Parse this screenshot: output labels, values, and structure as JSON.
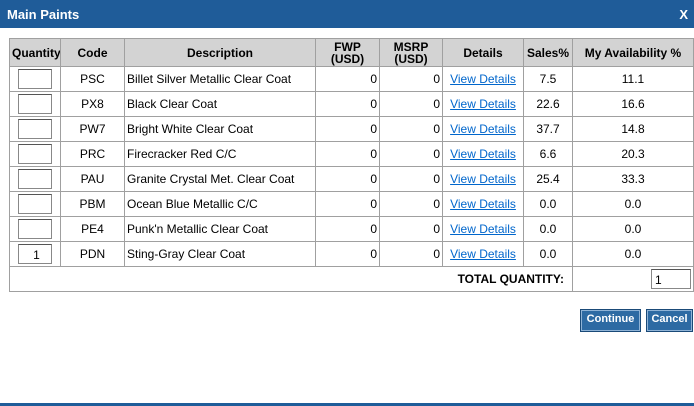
{
  "dialog": {
    "title": "Main Paints",
    "close": "X",
    "table": {
      "headers": [
        "Quantity",
        "Code",
        "Description",
        "FWP\n(USD)",
        "MSRP\n(USD)",
        "Details",
        "Sales%",
        "My Availability %"
      ],
      "rows": [
        {
          "code": "PSC",
          "description": "Billet Silver Metallic Clear Coat",
          "fwp": "0",
          "msrp": "0",
          "details": "View Details",
          "sales": "7.5",
          "availability": "11.1"
        },
        {
          "code": "PX8",
          "description": "Black Clear Coat",
          "fwp": "0",
          "msrp": "0",
          "details": "View Details",
          "sales": "22.6",
          "availability": "16.6"
        },
        {
          "code": "PW7",
          "description": "Bright White Clear Coat",
          "fwp": "0",
          "msrp": "0",
          "details": "View Details",
          "sales": "37.7",
          "availability": "14.8"
        },
        {
          "code": "PRC",
          "description": "Firecracker Red C/C",
          "fwp": "0",
          "msrp": "0",
          "details": "View Details",
          "sales": "6.6",
          "availability": "20.3"
        },
        {
          "code": "PAU",
          "description": "Granite Crystal Met. Clear Coat",
          "fwp": "0",
          "msrp": "0",
          "details": "View Details",
          "sales": "25.4",
          "availability": "33.3"
        },
        {
          "code": "PBM",
          "description": "Ocean Blue Metallic C/C",
          "fwp": "0",
          "msrp": "0",
          "details": "View Details",
          "sales": "0.0",
          "availability": "0.0"
        },
        {
          "code": "PE4",
          "description": "Punk'n Metallic Clear Coat",
          "fwp": "0",
          "msrp": "0",
          "details": "View Details",
          "sales": "0.0",
          "availability": "0.0"
        },
        {
          "quantity": "1",
          "code": "PDN",
          "description": "Sting-Gray Clear Coat",
          "fwp": "0",
          "msrp": "0",
          "details": "View Details",
          "sales": "0.0",
          "availability": "0.0"
        }
      ],
      "total_label": "TOTAL QUANTITY:",
      "total_value": "1"
    },
    "buttons": {
      "continue": "Continue",
      "cancel": "Cancel"
    }
  }
}
